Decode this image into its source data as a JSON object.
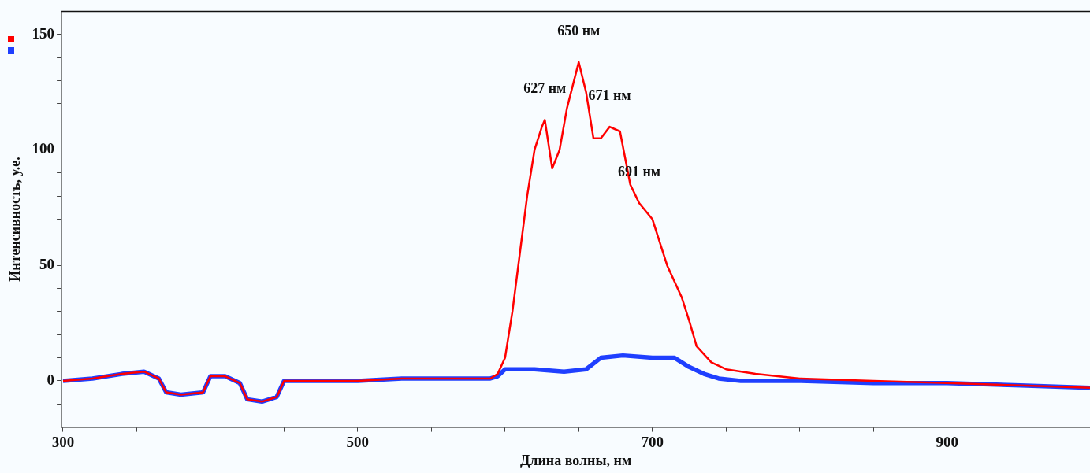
{
  "chart_data": {
    "type": "line",
    "xlabel": "Длина волны, нм",
    "ylabel": "Интенсивность, у.е.",
    "xlim": [
      299,
      997
    ],
    "ylim": [
      -20,
      160
    ],
    "xticks": [
      300,
      {
        "value": 350,
        "label": null
      },
      {
        "value": 400,
        "label": null
      },
      {
        "value": 450,
        "label": null
      },
      500,
      {
        "value": 550,
        "label": null
      },
      {
        "value": 600,
        "label": null
      },
      {
        "value": 650,
        "label": null
      },
      700,
      {
        "value": 750,
        "label": null
      },
      {
        "value": 800,
        "label": null
      },
      {
        "value": 850,
        "label": null
      },
      900,
      {
        "value": 950,
        "label": null
      }
    ],
    "yticks": [
      {
        "value": -10,
        "label": null
      },
      0,
      {
        "value": 10,
        "label": null
      },
      {
        "value": 20,
        "label": null
      },
      {
        "value": 30,
        "label": null
      },
      {
        "value": 40,
        "label": null
      },
      50,
      {
        "value": 60,
        "label": null
      },
      {
        "value": 70,
        "label": null
      },
      {
        "value": 80,
        "label": null
      },
      {
        "value": 90,
        "label": null
      },
      100,
      {
        "value": 110,
        "label": null
      },
      {
        "value": 120,
        "label": null
      },
      {
        "value": 130,
        "label": null
      },
      {
        "value": 140,
        "label": null
      },
      150
    ],
    "grid": false,
    "legend": false,
    "marker": "none",
    "line_style": "solid",
    "series": [
      {
        "color": "#ff0000",
        "x": [
          300,
          320,
          340,
          355,
          365,
          370,
          380,
          395,
          400,
          410,
          420,
          425,
          435,
          445,
          450,
          470,
          500,
          530,
          560,
          590,
          595,
          600,
          605,
          610,
          615,
          620,
          625,
          627,
          632,
          637,
          642,
          648,
          650,
          655,
          660,
          665,
          671,
          678,
          685,
          691,
          700,
          705,
          710,
          715,
          720,
          725,
          730,
          740,
          750,
          770,
          800,
          850,
          900,
          950,
          997
        ],
        "values": [
          0,
          1,
          3,
          4,
          1,
          -5,
          -6,
          -5,
          2,
          2,
          -1,
          -8,
          -9,
          -7,
          0,
          0,
          0,
          1,
          1,
          1,
          3,
          10,
          30,
          55,
          80,
          100,
          110,
          113,
          92,
          100,
          118,
          133,
          138,
          125,
          105,
          105,
          110,
          108,
          85,
          77,
          70,
          60,
          50,
          43,
          36,
          26,
          15,
          8,
          5,
          3,
          1,
          0,
          -1,
          -2,
          -3
        ]
      },
      {
        "color": "#1f3fff",
        "x": [
          300,
          320,
          340,
          355,
          365,
          370,
          380,
          395,
          400,
          410,
          420,
          425,
          435,
          445,
          450,
          470,
          500,
          530,
          560,
          590,
          595,
          600,
          610,
          620,
          640,
          655,
          665,
          680,
          700,
          715,
          725,
          735,
          745,
          760,
          800,
          850,
          900,
          950,
          997
        ],
        "values": [
          0,
          1,
          3,
          4,
          1,
          -5,
          -6,
          -5,
          2,
          2,
          -1,
          -8,
          -9,
          -7,
          0,
          0,
          0,
          1,
          1,
          1,
          2,
          5,
          5,
          5,
          4,
          5,
          10,
          11,
          10,
          10,
          6,
          3,
          1,
          0,
          0,
          -1,
          -1,
          -2,
          -3
        ]
      }
    ],
    "annotations": [
      {
        "text": "627 нм",
        "x": 627,
        "y": 113
      },
      {
        "text": "650 нм",
        "x": 650,
        "y": 138
      },
      {
        "text": "671 нм",
        "x": 671,
        "y": 110
      },
      {
        "text": "691 нм",
        "x": 691,
        "y": 77
      }
    ]
  }
}
